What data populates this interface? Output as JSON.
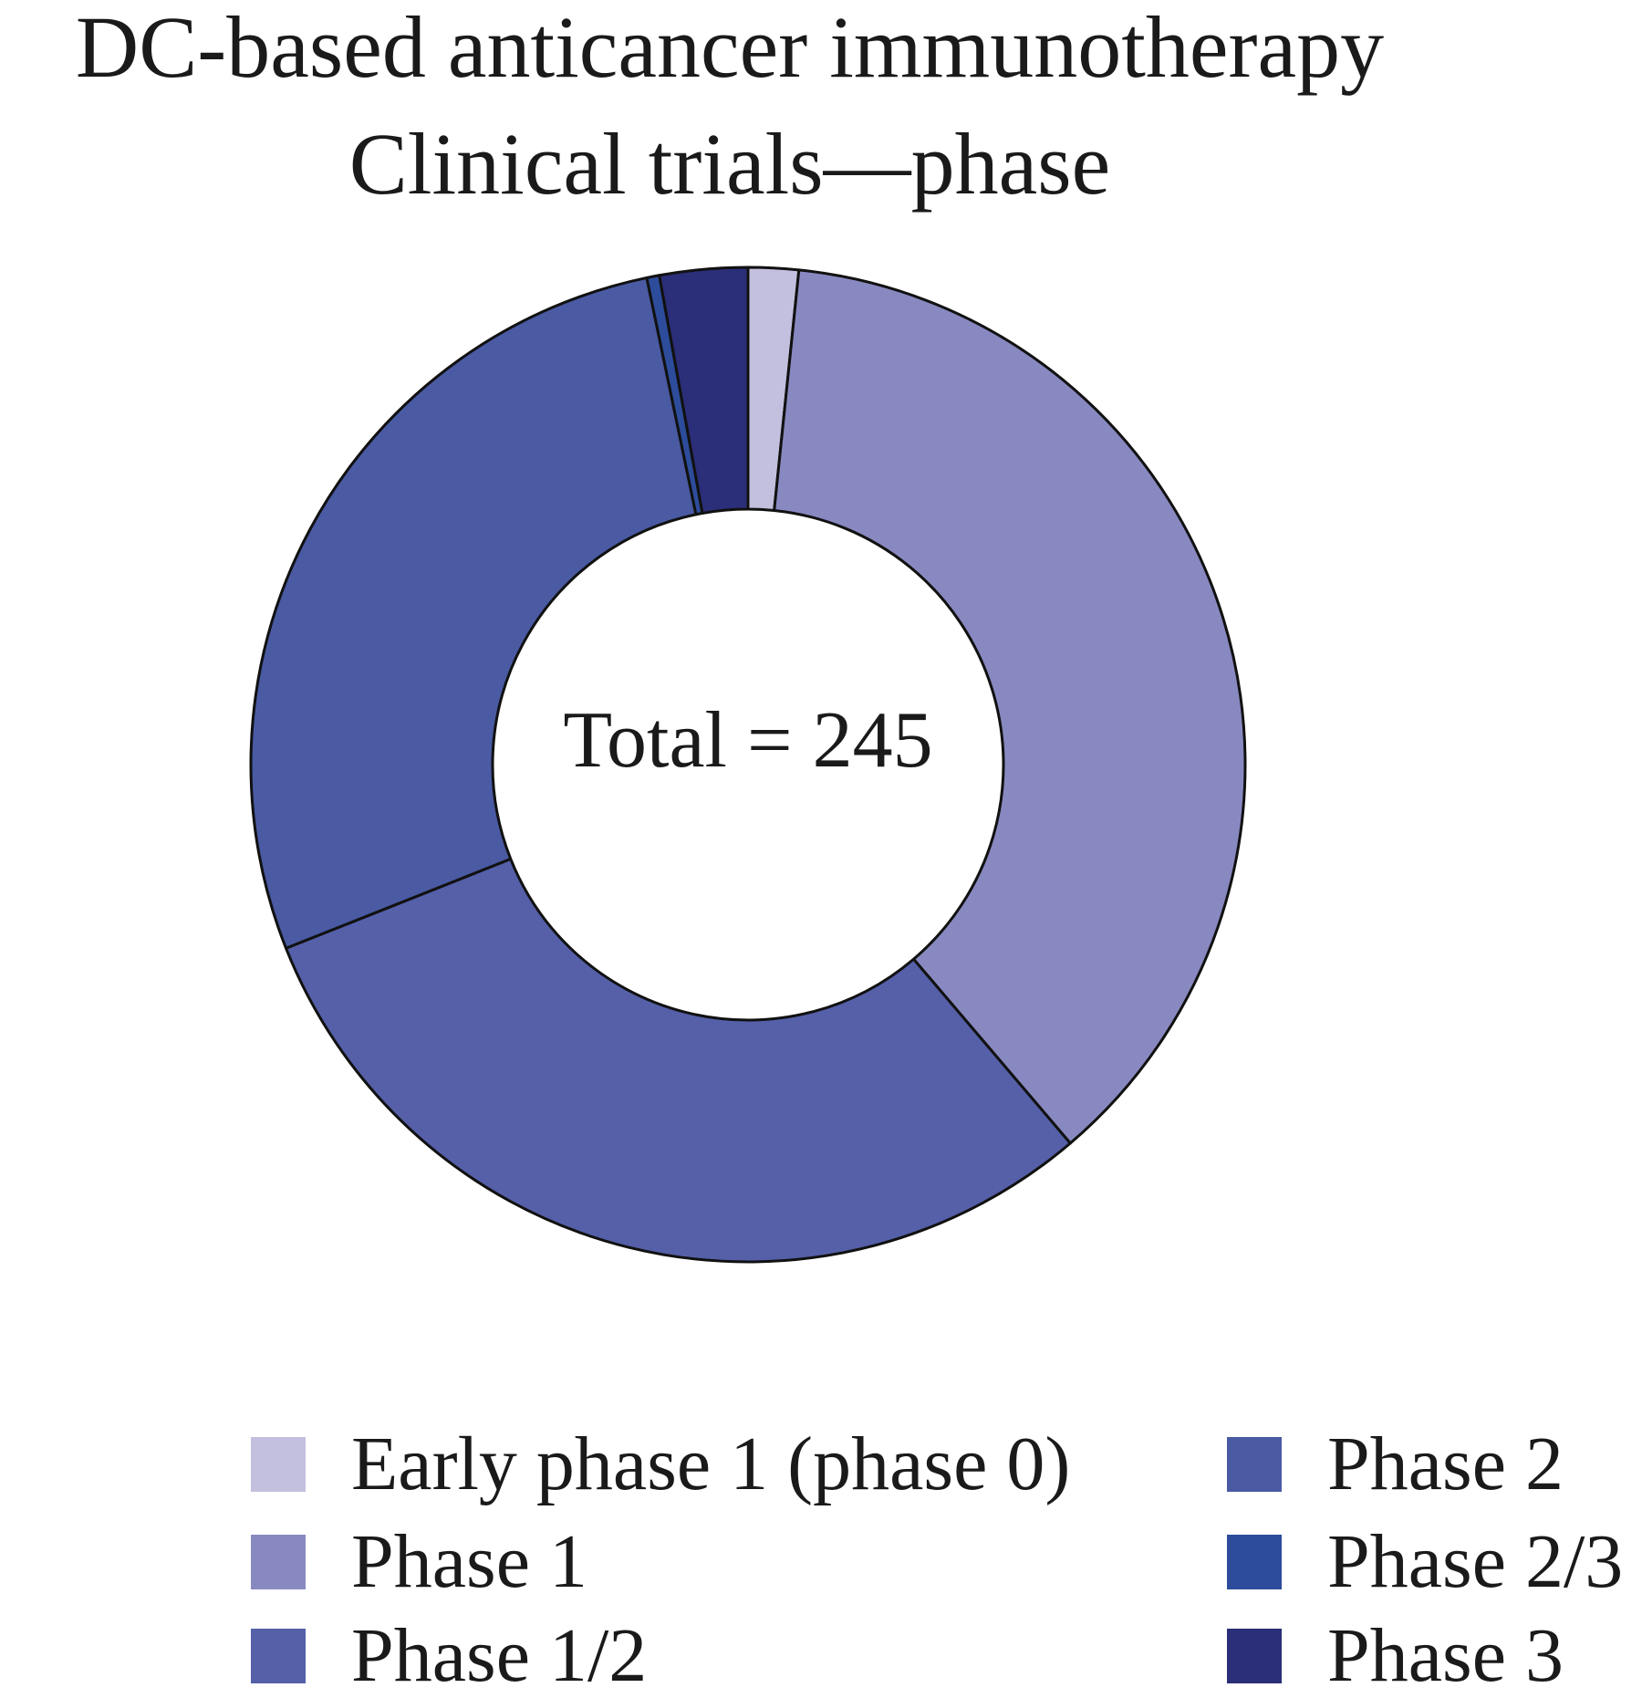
{
  "chart_data": {
    "type": "pie",
    "variant": "donut",
    "title": "DC-based anticancer immunotherapy",
    "subtitle": "Clinical trials—phase",
    "center_label": "Total = 245",
    "total": 245,
    "categories": [
      "Early phase 1 (phase 0)",
      "Phase 1",
      "Phase 1/2",
      "Phase 2",
      "Phase 2/3",
      "Phase 3"
    ],
    "values": [
      4,
      91,
      74,
      68,
      1,
      7
    ],
    "colors": [
      "#c2c0de",
      "#8989c1",
      "#5560a9",
      "#4a5aa3",
      "#2d4d9c",
      "#2b2e78"
    ],
    "legend_position": "bottom"
  }
}
